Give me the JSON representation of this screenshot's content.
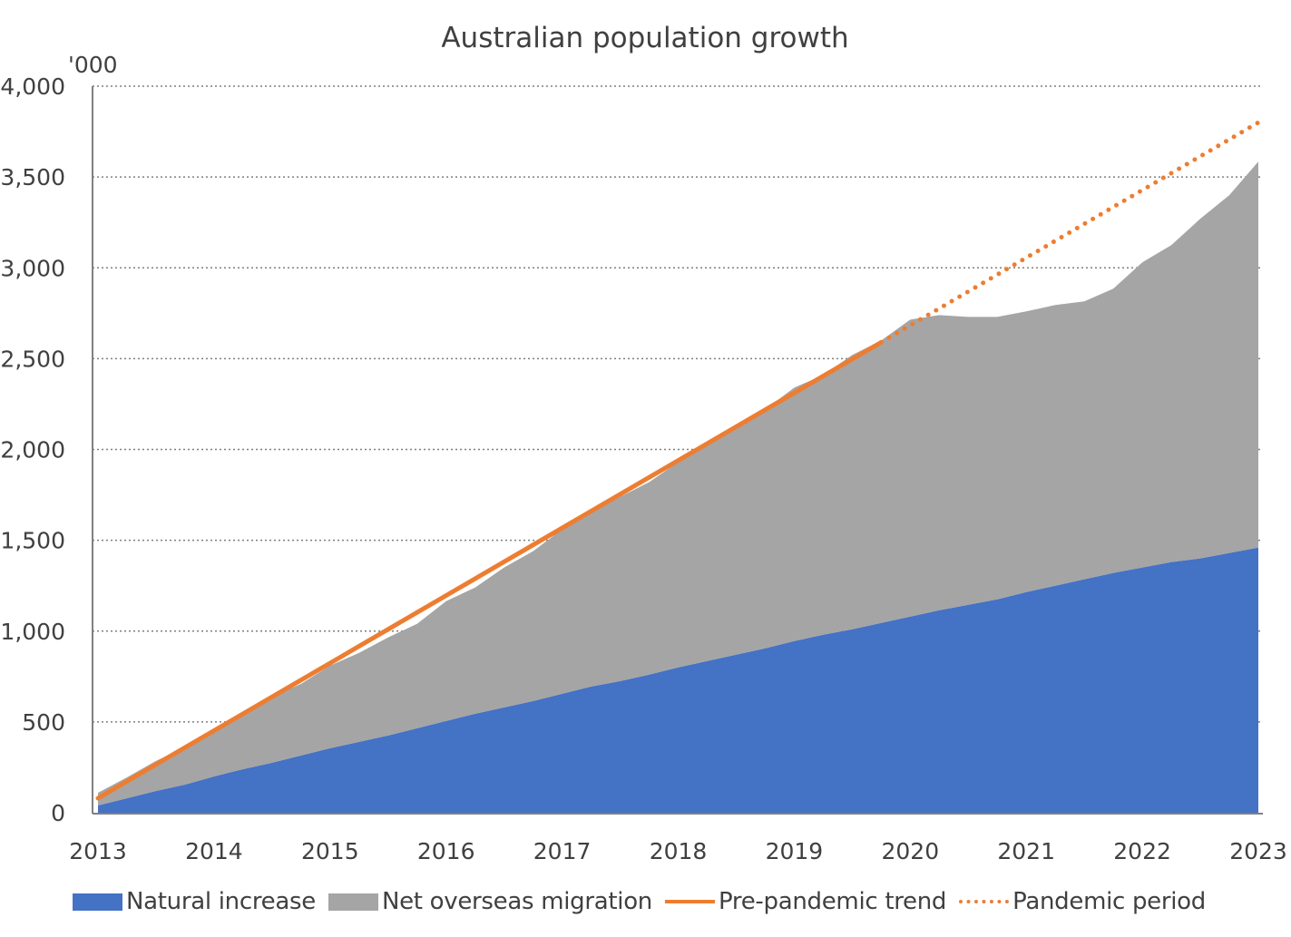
{
  "chart_data": {
    "type": "area",
    "title": "Australian population growth",
    "unit_label": "'000",
    "xlabel": "",
    "ylabel": "",
    "ylim": [
      0,
      4000
    ],
    "yticks": [
      0,
      500,
      1000,
      1500,
      2000,
      2500,
      3000,
      3500,
      4000
    ],
    "ytick_labels": [
      "0",
      "500",
      "1,000",
      "1,500",
      "2,000",
      "2,500",
      "3,000",
      "3,500",
      "4,000"
    ],
    "x_start": 2013,
    "x_end": 2023,
    "xtick_labels": [
      "2013",
      "2014",
      "2015",
      "2016",
      "2017",
      "2018",
      "2019",
      "2020",
      "2021",
      "2022",
      "2023"
    ],
    "grid": "horizontal-dotted",
    "legend_position": "bottom",
    "stacked": true,
    "x": [
      2013.0,
      2013.25,
      2013.5,
      2013.75,
      2014.0,
      2014.25,
      2014.5,
      2014.75,
      2015.0,
      2015.25,
      2015.5,
      2015.75,
      2016.0,
      2016.25,
      2016.5,
      2016.75,
      2017.0,
      2017.25,
      2017.5,
      2017.75,
      2018.0,
      2018.25,
      2018.5,
      2018.75,
      2019.0,
      2019.25,
      2019.5,
      2019.75,
      2020.0,
      2020.25,
      2020.5,
      2020.75,
      2021.0,
      2021.25,
      2021.5,
      2021.75,
      2022.0,
      2022.25,
      2022.5,
      2022.75,
      2023.0
    ],
    "series": [
      {
        "name": "Natural increase",
        "kind": "area",
        "color": "#4472C4",
        "values": [
          40,
          80,
          120,
          155,
          200,
          240,
          275,
          315,
          355,
          390,
          425,
          465,
          505,
          545,
          580,
          615,
          655,
          695,
          725,
          760,
          800,
          835,
          870,
          905,
          945,
          980,
          1010,
          1045,
          1080,
          1115,
          1145,
          1175,
          1215,
          1250,
          1285,
          1320,
          1350,
          1380,
          1400,
          1430,
          1460
        ]
      },
      {
        "name": "Net overseas migration",
        "kind": "area",
        "color": "#A5A5A5",
        "cumulative_totals": [
          110,
          195,
          285,
          360,
          450,
          550,
          640,
          710,
          810,
          880,
          965,
          1040,
          1165,
          1240,
          1350,
          1440,
          1560,
          1660,
          1740,
          1820,
          1930,
          2020,
          2120,
          2220,
          2340,
          2410,
          2520,
          2600,
          2715,
          2740,
          2730,
          2730,
          2760,
          2795,
          2815,
          2885,
          3030,
          3125,
          3270,
          3400,
          3585
        ],
        "values": [
          70,
          115,
          165,
          205,
          250,
          310,
          365,
          395,
          455,
          490,
          540,
          575,
          660,
          695,
          770,
          825,
          905,
          965,
          1015,
          1060,
          1130,
          1185,
          1250,
          1315,
          1395,
          1430,
          1510,
          1555,
          1635,
          1625,
          1585,
          1555,
          1545,
          1545,
          1530,
          1565,
          1680,
          1745,
          1870,
          1970,
          2125
        ]
      },
      {
        "name": "Pre-pandemic trend",
        "kind": "line",
        "style": "solid",
        "color": "#ED7D31",
        "x": [
          2013.0,
          2019.75
        ],
        "values": [
          80,
          2590
        ]
      },
      {
        "name": "Pandemic period",
        "kind": "line",
        "style": "dotted",
        "color": "#ED7D31",
        "x": [
          2019.75,
          2023.0
        ],
        "values": [
          2590,
          3800
        ]
      }
    ]
  },
  "legend": {
    "items": [
      {
        "label": "Natural increase",
        "type": "box",
        "color": "#4472C4"
      },
      {
        "label": "Net overseas migration",
        "type": "box",
        "color": "#A5A5A5"
      },
      {
        "label": "Pre-pandemic trend",
        "type": "line",
        "color": "#ED7D31"
      },
      {
        "label": "Pandemic period",
        "type": "dots",
        "color": "#ED7D31"
      }
    ]
  },
  "colors": {
    "text": "#404040",
    "axis": "#808080",
    "grid": "#7F7F7F",
    "background": "#FFFFFF"
  }
}
